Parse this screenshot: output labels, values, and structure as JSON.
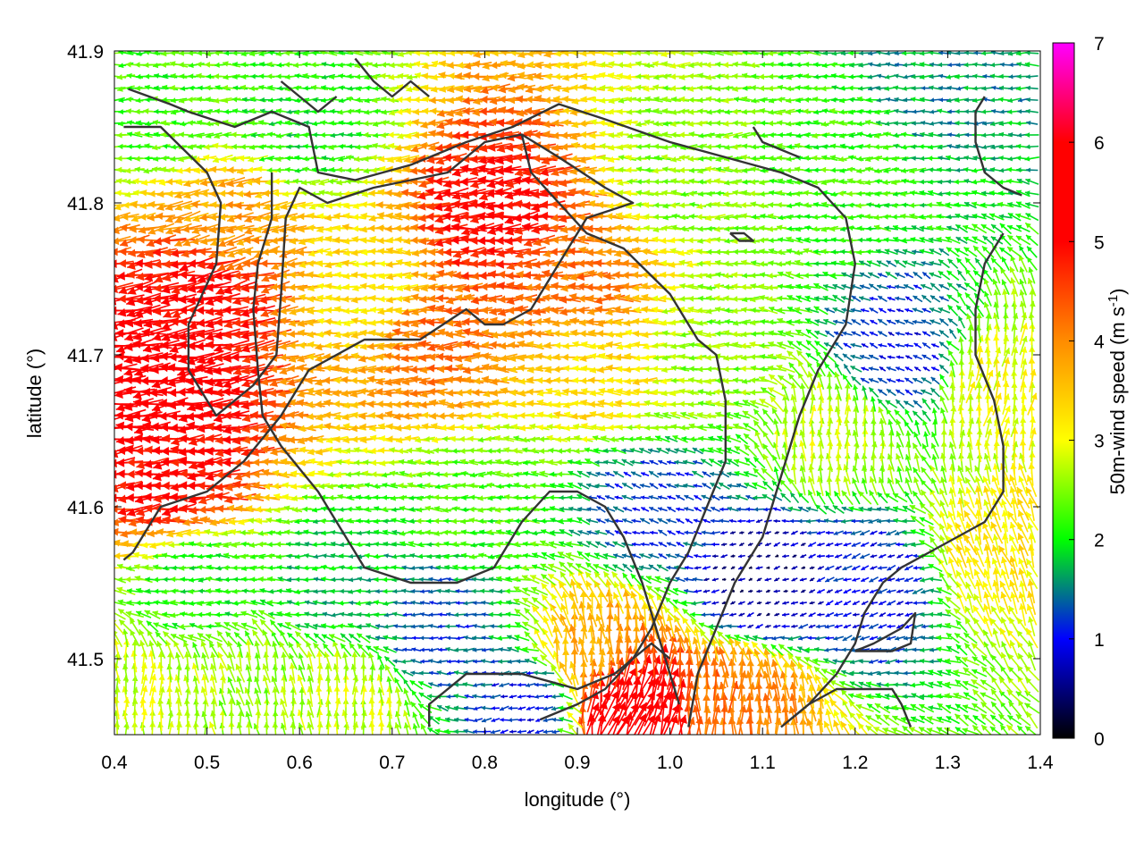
{
  "chart_data": {
    "type": "vector-field",
    "xlabel": "longitude (°)",
    "ylabel": "latitude (°)",
    "xlim": [
      0.4,
      1.4
    ],
    "ylim": [
      41.45,
      41.9
    ],
    "xticks": [
      "0.4",
      "0.5",
      "0.6",
      "0.7",
      "0.8",
      "0.9",
      "1.0",
      "1.1",
      "1.2",
      "1.3",
      "1.4"
    ],
    "xtick_values": [
      0.4,
      0.5,
      0.6,
      0.7,
      0.8,
      0.9,
      1.0,
      1.1,
      1.2,
      1.3,
      1.4
    ],
    "yticks": [
      "41.5",
      "41.6",
      "41.7",
      "41.8",
      "41.9"
    ],
    "ytick_values": [
      41.5,
      41.6,
      41.7,
      41.8,
      41.9
    ],
    "colorbar": {
      "label": "50m-wind speed (m s",
      "label_sup": "-1",
      "label_end": ")",
      "range": [
        0,
        7
      ],
      "ticks": [
        "0",
        "1",
        "2",
        "3",
        "4",
        "5",
        "6",
        "7"
      ],
      "tick_values": [
        0,
        1,
        2,
        3,
        4,
        5,
        6,
        7
      ],
      "colors": [
        "#000000",
        "#0000ff",
        "#00ff00",
        "#ffff00",
        "#ff8c00",
        "#ff0000",
        "#ff00ff"
      ]
    },
    "grid": false,
    "wind_grid": {
      "dlon": 0.0095,
      "dlat": 0.0077
    },
    "speed_regions": [
      {
        "lon": 0.44,
        "lat": 41.68,
        "speed": 5.7,
        "dir": 185
      },
      {
        "lon": 0.47,
        "lat": 41.62,
        "speed": 5.0,
        "dir": 185
      },
      {
        "lon": 0.5,
        "lat": 41.74,
        "speed": 5.0,
        "dir": 190
      },
      {
        "lon": 0.53,
        "lat": 41.79,
        "speed": 3.8,
        "dir": 190
      },
      {
        "lon": 0.45,
        "lat": 41.86,
        "speed": 2.2,
        "dir": 180
      },
      {
        "lon": 0.6,
        "lat": 41.85,
        "speed": 2.0,
        "dir": 180
      },
      {
        "lon": 0.75,
        "lat": 41.71,
        "speed": 4.2,
        "dir": 180
      },
      {
        "lon": 0.82,
        "lat": 41.79,
        "speed": 5.0,
        "dir": 185
      },
      {
        "lon": 0.9,
        "lat": 41.75,
        "speed": 4.2,
        "dir": 180
      },
      {
        "lon": 0.93,
        "lat": 41.69,
        "speed": 3.3,
        "dir": 180
      },
      {
        "lon": 0.68,
        "lat": 41.74,
        "speed": 3.2,
        "dir": 180
      },
      {
        "lon": 1.05,
        "lat": 41.7,
        "speed": 2.5,
        "dir": 180
      },
      {
        "lon": 1.02,
        "lat": 41.82,
        "speed": 2.5,
        "dir": 180
      },
      {
        "lon": 1.18,
        "lat": 41.82,
        "speed": 2.2,
        "dir": 180
      },
      {
        "lon": 1.3,
        "lat": 41.88,
        "speed": 1.6,
        "dir": 180
      },
      {
        "lon": 1.25,
        "lat": 41.7,
        "speed": 1.0,
        "dir": 160
      },
      {
        "lon": 1.18,
        "lat": 41.65,
        "speed": 2.8,
        "dir": 90
      },
      {
        "lon": 1.35,
        "lat": 41.68,
        "speed": 3.0,
        "dir": 80
      },
      {
        "lon": 1.35,
        "lat": 41.57,
        "speed": 3.2,
        "dir": 110
      },
      {
        "lon": 1.22,
        "lat": 41.55,
        "speed": 1.0,
        "dir": 200
      },
      {
        "lon": 1.1,
        "lat": 41.55,
        "speed": 0.5,
        "dir": 200
      },
      {
        "lon": 0.98,
        "lat": 41.6,
        "speed": 1.2,
        "dir": 160
      },
      {
        "lon": 0.92,
        "lat": 41.5,
        "speed": 3.8,
        "dir": 95
      },
      {
        "lon": 0.95,
        "lat": 41.47,
        "speed": 5.8,
        "dir": 70
      },
      {
        "lon": 1.07,
        "lat": 41.47,
        "speed": 4.2,
        "dir": 90
      },
      {
        "lon": 0.8,
        "lat": 41.6,
        "speed": 2.2,
        "dir": 180
      },
      {
        "lon": 0.75,
        "lat": 41.52,
        "speed": 1.3,
        "dir": 180
      },
      {
        "lon": 0.64,
        "lat": 41.55,
        "speed": 1.8,
        "dir": 180
      },
      {
        "lon": 0.5,
        "lat": 41.55,
        "speed": 2.0,
        "dir": 180
      },
      {
        "lon": 0.55,
        "lat": 41.48,
        "speed": 2.6,
        "dir": 100
      },
      {
        "lon": 0.65,
        "lat": 41.47,
        "speed": 2.8,
        "dir": 90
      },
      {
        "lon": 0.43,
        "lat": 41.47,
        "speed": 2.8,
        "dir": 90
      },
      {
        "lon": 0.85,
        "lat": 41.47,
        "speed": 1.0,
        "dir": 190
      }
    ],
    "contours": [
      [
        [
          0.41,
          41.85
        ],
        [
          0.45,
          41.85
        ],
        [
          0.5,
          41.82
        ],
        [
          0.515,
          41.8
        ],
        [
          0.51,
          41.76
        ],
        [
          0.48,
          41.72
        ],
        [
          0.48,
          41.69
        ],
        [
          0.51,
          41.66
        ],
        [
          0.55,
          41.68
        ],
        [
          0.575,
          41.7
        ],
        [
          0.58,
          41.74
        ],
        [
          0.585,
          41.79
        ],
        [
          0.6,
          41.81
        ],
        [
          0.63,
          41.8
        ],
        [
          0.68,
          41.81
        ],
        [
          0.76,
          41.82
        ],
        [
          0.8,
          41.84
        ],
        [
          0.84,
          41.845
        ],
        [
          0.88,
          41.83
        ],
        [
          0.93,
          41.81
        ],
        [
          0.96,
          41.8
        ],
        [
          0.91,
          41.79
        ],
        [
          0.88,
          41.76
        ],
        [
          0.85,
          41.73
        ],
        [
          0.82,
          41.72
        ],
        [
          0.8,
          41.72
        ],
        [
          0.78,
          41.73
        ],
        [
          0.73,
          41.71
        ],
        [
          0.67,
          41.71
        ],
        [
          0.61,
          41.69
        ],
        [
          0.58,
          41.66
        ],
        [
          0.54,
          41.63
        ],
        [
          0.5,
          41.61
        ],
        [
          0.45,
          41.6
        ],
        [
          0.42,
          41.57
        ],
        [
          0.41,
          41.565
        ]
      ],
      [
        [
          0.415,
          41.875
        ],
        [
          0.46,
          41.865
        ],
        [
          0.48,
          41.86
        ],
        [
          0.53,
          41.85
        ],
        [
          0.57,
          41.86
        ],
        [
          0.61,
          41.85
        ],
        [
          0.62,
          41.82
        ],
        [
          0.66,
          41.815
        ],
        [
          0.72,
          41.825
        ],
        [
          0.78,
          41.84
        ],
        [
          0.83,
          41.85
        ],
        [
          0.88,
          41.865
        ],
        [
          0.93,
          41.855
        ],
        [
          1.0,
          41.84
        ],
        [
          1.06,
          41.83
        ],
        [
          1.12,
          41.82
        ],
        [
          1.16,
          41.81
        ],
        [
          1.19,
          41.79
        ],
        [
          1.2,
          41.76
        ],
        [
          1.19,
          41.72
        ],
        [
          1.16,
          41.69
        ],
        [
          1.14,
          41.66
        ],
        [
          1.12,
          41.62
        ],
        [
          1.1,
          41.58
        ],
        [
          1.07,
          41.55
        ],
        [
          1.05,
          41.52
        ],
        [
          1.03,
          41.49
        ],
        [
          1.02,
          41.455
        ]
      ],
      [
        [
          0.57,
          41.82
        ],
        [
          0.57,
          41.79
        ],
        [
          0.555,
          41.76
        ],
        [
          0.55,
          41.73
        ],
        [
          0.555,
          41.69
        ],
        [
          0.56,
          41.66
        ],
        [
          0.58,
          41.64
        ],
        [
          0.62,
          41.61
        ],
        [
          0.65,
          41.58
        ],
        [
          0.67,
          41.56
        ],
        [
          0.72,
          41.55
        ],
        [
          0.77,
          41.55
        ],
        [
          0.81,
          41.56
        ],
        [
          0.84,
          41.59
        ],
        [
          0.87,
          41.61
        ],
        [
          0.9,
          41.61
        ],
        [
          0.93,
          41.6
        ],
        [
          0.95,
          41.58
        ],
        [
          0.97,
          41.55
        ],
        [
          0.99,
          41.51
        ],
        [
          1.0,
          41.49
        ],
        [
          1.01,
          41.47
        ]
      ],
      [
        [
          0.84,
          41.845
        ],
        [
          0.85,
          41.82
        ],
        [
          0.88,
          41.8
        ],
        [
          0.91,
          41.78
        ],
        [
          0.95,
          41.77
        ],
        [
          1.0,
          41.74
        ],
        [
          1.03,
          41.71
        ],
        [
          1.05,
          41.7
        ],
        [
          1.06,
          41.67
        ],
        [
          1.06,
          41.63
        ],
        [
          1.04,
          41.6
        ],
        [
          1.02,
          41.57
        ],
        [
          1.0,
          41.55
        ],
        [
          0.98,
          41.52
        ],
        [
          0.96,
          41.5
        ],
        [
          0.93,
          41.48
        ],
        [
          0.9,
          41.47
        ],
        [
          0.86,
          41.46
        ]
      ],
      [
        [
          0.74,
          41.455
        ],
        [
          0.74,
          41.47
        ],
        [
          0.78,
          41.49
        ],
        [
          0.84,
          41.49
        ],
        [
          0.9,
          41.48
        ],
        [
          0.94,
          41.49
        ],
        [
          0.98,
          41.51
        ],
        [
          1.0,
          41.5
        ]
      ],
      [
        [
          1.12,
          41.455
        ],
        [
          1.15,
          41.47
        ],
        [
          1.18,
          41.48
        ],
        [
          1.24,
          41.48
        ],
        [
          1.25,
          41.47
        ],
        [
          1.26,
          41.455
        ]
      ],
      [
        [
          1.34,
          41.87
        ],
        [
          1.33,
          41.86
        ],
        [
          1.33,
          41.84
        ],
        [
          1.34,
          41.82
        ],
        [
          1.36,
          41.81
        ],
        [
          1.38,
          41.805
        ]
      ],
      [
        [
          1.36,
          41.78
        ],
        [
          1.34,
          41.76
        ],
        [
          1.33,
          41.73
        ],
        [
          1.33,
          41.7
        ],
        [
          1.35,
          41.67
        ],
        [
          1.36,
          41.64
        ],
        [
          1.36,
          41.61
        ],
        [
          1.34,
          41.59
        ],
        [
          1.31,
          41.58
        ],
        [
          1.28,
          41.57
        ],
        [
          1.25,
          41.56
        ],
        [
          1.23,
          41.55
        ],
        [
          1.21,
          41.53
        ],
        [
          1.2,
          41.51
        ],
        [
          1.18,
          41.49
        ],
        [
          1.15,
          41.47
        ],
        [
          1.13,
          41.46
        ]
      ],
      [
        [
          1.065,
          41.78
        ],
        [
          1.08,
          41.78
        ],
        [
          1.09,
          41.775
        ],
        [
          1.075,
          41.775
        ],
        [
          1.065,
          41.78
        ]
      ],
      [
        [
          1.2,
          41.505
        ],
        [
          1.24,
          41.505
        ],
        [
          1.26,
          41.51
        ],
        [
          1.265,
          41.53
        ],
        [
          1.25,
          41.52
        ],
        [
          1.22,
          41.51
        ],
        [
          1.2,
          41.505
        ]
      ],
      [
        [
          0.66,
          41.895
        ],
        [
          0.68,
          41.88
        ],
        [
          0.7,
          41.87
        ],
        [
          0.72,
          41.88
        ],
        [
          0.74,
          41.87
        ]
      ],
      [
        [
          0.58,
          41.88
        ],
        [
          0.6,
          41.87
        ],
        [
          0.62,
          41.86
        ],
        [
          0.64,
          41.87
        ]
      ],
      [
        [
          1.09,
          41.85
        ],
        [
          1.1,
          41.84
        ],
        [
          1.12,
          41.835
        ],
        [
          1.14,
          41.83
        ]
      ]
    ]
  }
}
